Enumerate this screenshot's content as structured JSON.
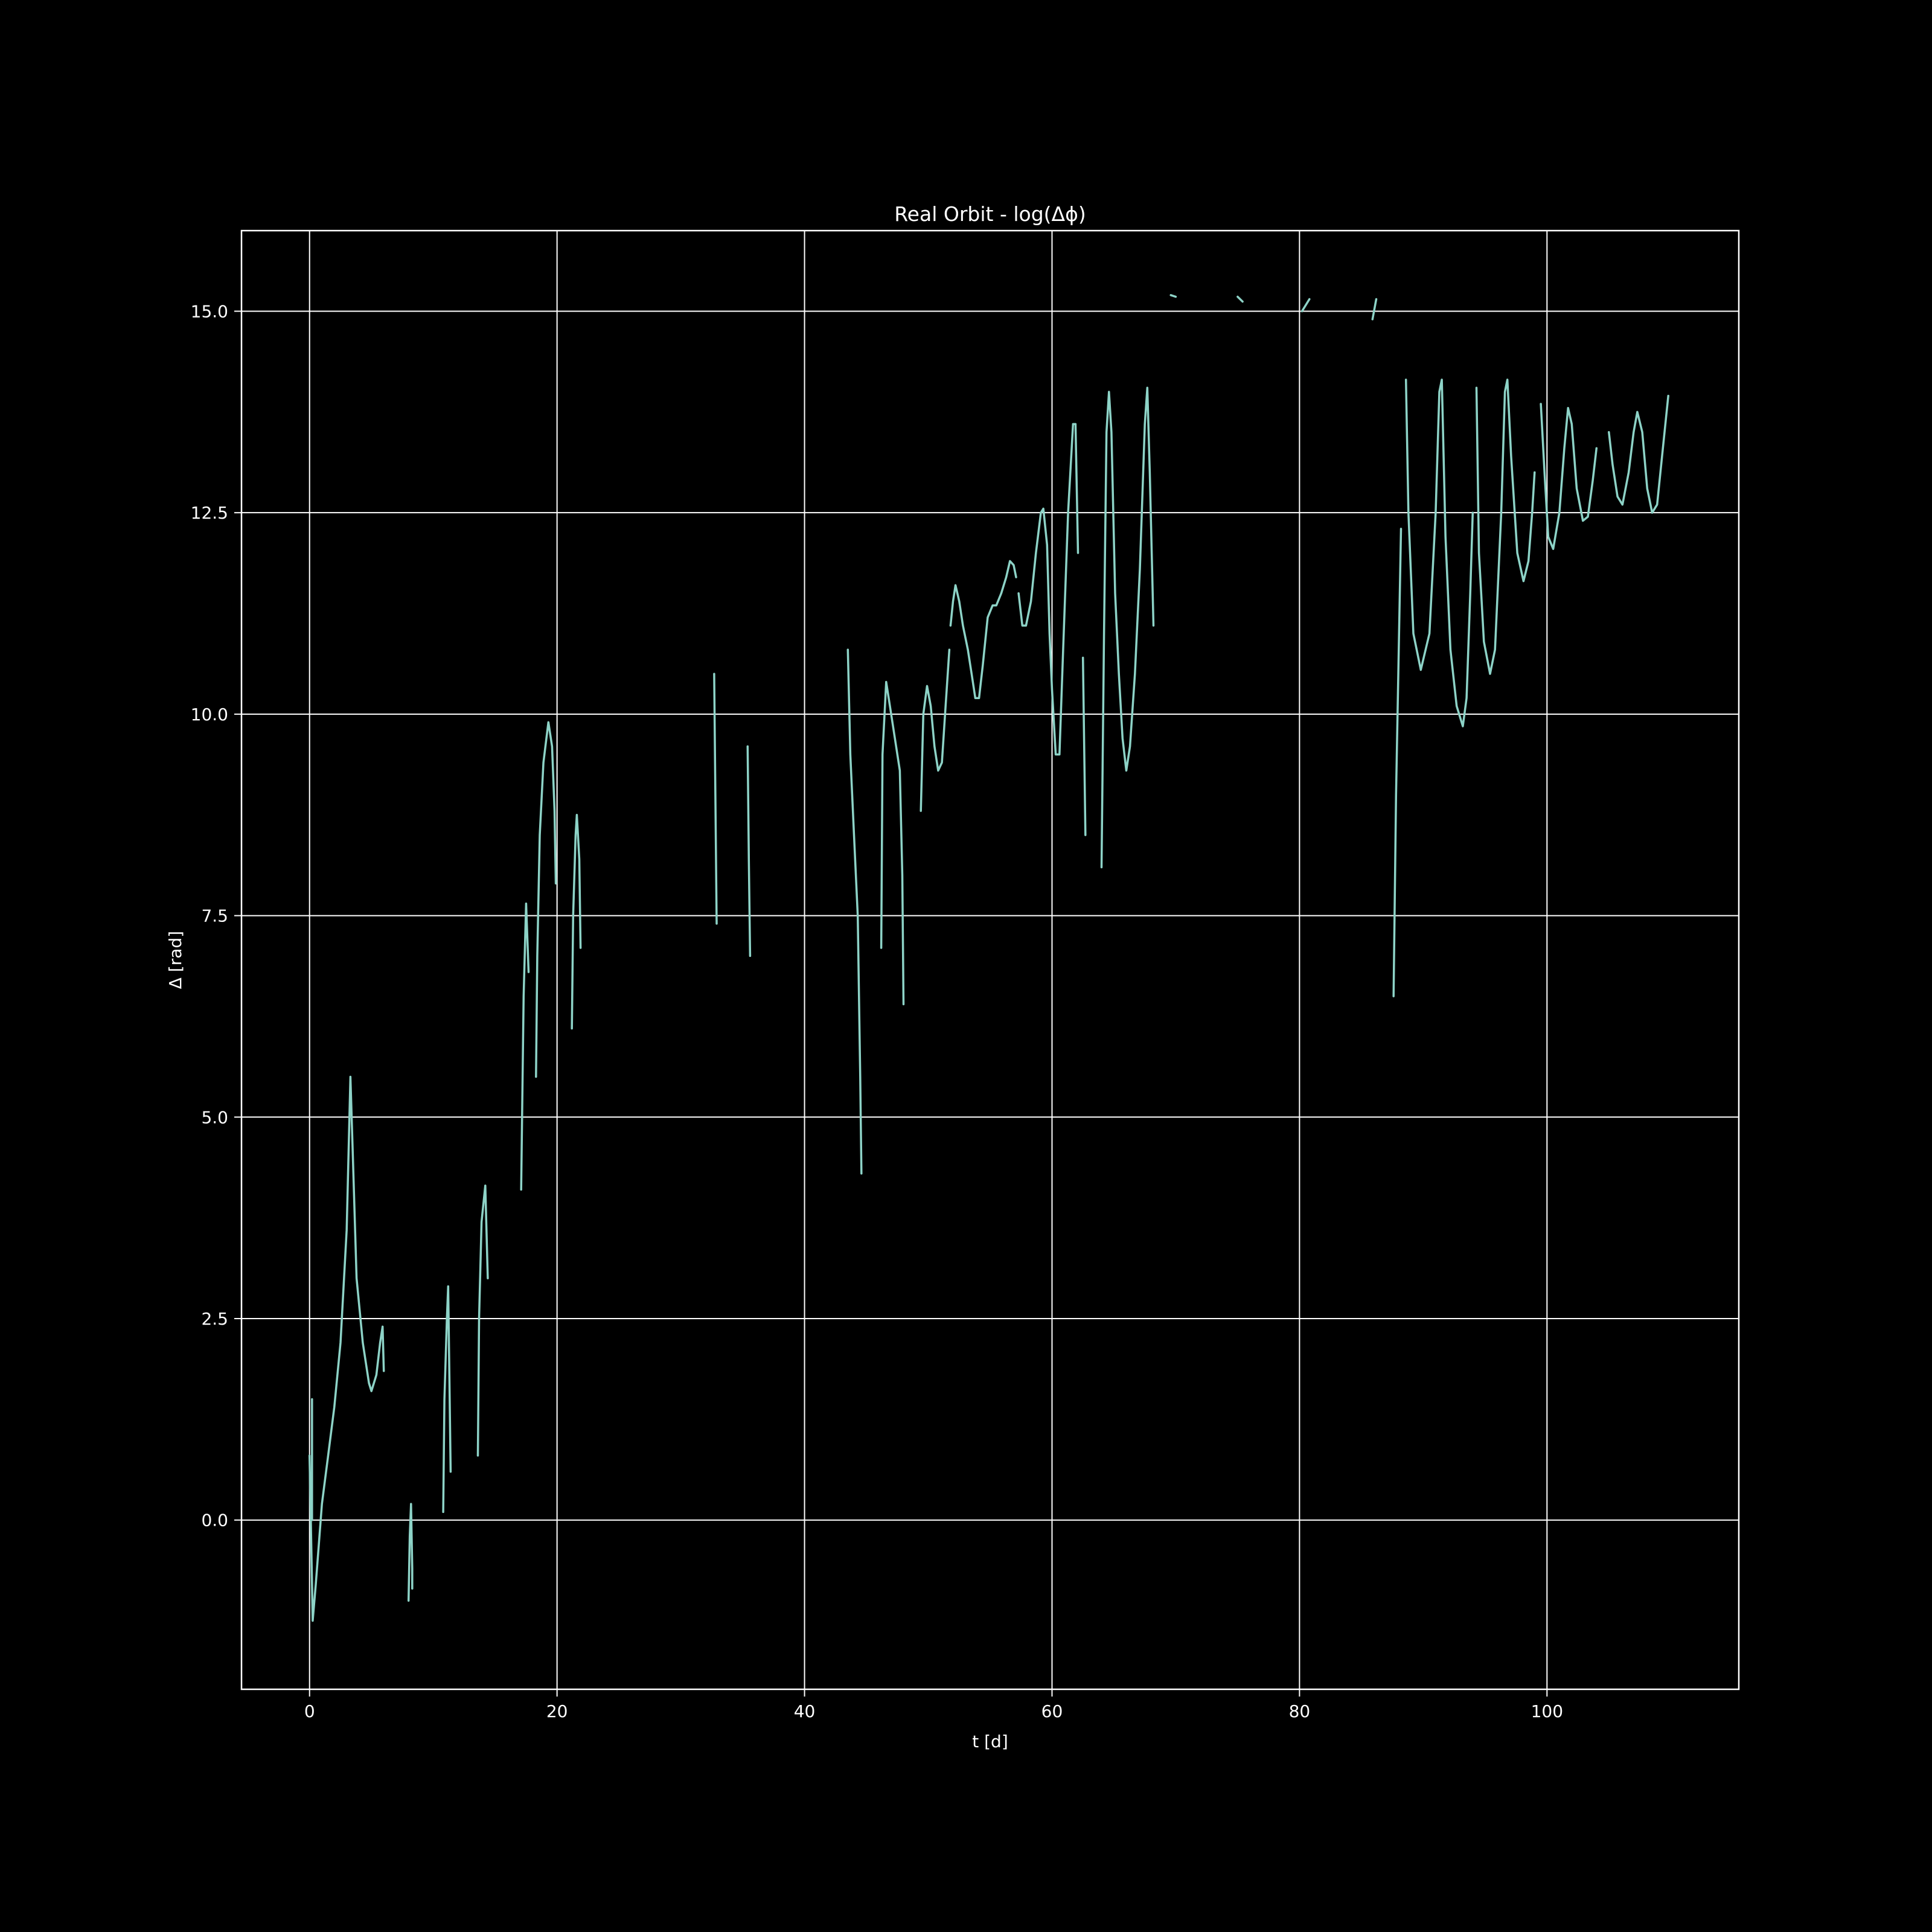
{
  "chart_data": {
    "type": "line",
    "title": "Real Orbit - log(Δϕ)",
    "xlabel": "t [d]",
    "ylabel": "Δ [rad]",
    "xlim": [
      -5.5,
      115.5
    ],
    "ylim": [
      -2.1,
      16.0
    ],
    "grid": true,
    "background": "#000000",
    "line_color": "#8dd3c7",
    "grid_color": "#ffffff",
    "x_ticks": [
      {
        "value": 0,
        "label": "0"
      },
      {
        "value": 20,
        "label": "20"
      },
      {
        "value": 40,
        "label": "40"
      },
      {
        "value": 60,
        "label": "60"
      },
      {
        "value": 80,
        "label": "80"
      },
      {
        "value": 100,
        "label": "100"
      }
    ],
    "y_ticks": [
      {
        "value": 0.0,
        "label": "0.0"
      },
      {
        "value": 2.5,
        "label": "2.5"
      },
      {
        "value": 5.0,
        "label": "5.0"
      },
      {
        "value": 7.5,
        "label": "7.5"
      },
      {
        "value": 10.0,
        "label": "10.0"
      },
      {
        "value": 12.5,
        "label": "12.5"
      },
      {
        "value": 15.0,
        "label": "15.0"
      }
    ],
    "segments": [
      [
        [
          0.0,
          0.8
        ],
        [
          0.1,
          0.0
        ],
        [
          0.25,
          -1.25
        ],
        [
          0.5,
          -0.8
        ],
        [
          1.0,
          0.2
        ],
        [
          1.5,
          0.8
        ],
        [
          2.0,
          1.4
        ],
        [
          2.5,
          2.2
        ],
        [
          3.0,
          3.6
        ],
        [
          3.3,
          5.5
        ],
        [
          3.5,
          4.5
        ],
        [
          3.8,
          3.0
        ],
        [
          4.3,
          2.2
        ],
        [
          4.8,
          1.7
        ],
        [
          5.0,
          1.6
        ],
        [
          5.4,
          1.8
        ],
        [
          5.7,
          2.2
        ],
        [
          5.9,
          2.4
        ],
        [
          6.0,
          1.85
        ]
      ],
      [
        [
          0.2,
          1.5
        ],
        [
          0.2,
          0.0
        ]
      ],
      [
        [
          8.0,
          -1.0
        ],
        [
          8.1,
          -0.2
        ],
        [
          8.2,
          0.2
        ],
        [
          8.3,
          -0.6
        ],
        [
          8.3,
          -0.85
        ]
      ],
      [
        [
          10.8,
          0.1
        ],
        [
          10.9,
          1.5
        ],
        [
          11.1,
          2.5
        ],
        [
          11.2,
          2.9
        ],
        [
          11.3,
          1.8
        ],
        [
          11.4,
          0.6
        ]
      ],
      [
        [
          13.6,
          0.8
        ],
        [
          13.7,
          2.5
        ],
        [
          13.9,
          3.7
        ],
        [
          14.2,
          4.15
        ],
        [
          14.4,
          3.0
        ]
      ],
      [
        [
          17.1,
          4.1
        ],
        [
          17.3,
          6.5
        ],
        [
          17.5,
          7.65
        ],
        [
          17.7,
          6.8
        ]
      ],
      [
        [
          18.3,
          5.5
        ],
        [
          18.4,
          7.0
        ],
        [
          18.6,
          8.5
        ],
        [
          18.9,
          9.4
        ],
        [
          19.3,
          9.9
        ],
        [
          19.6,
          9.6
        ],
        [
          19.8,
          8.8
        ],
        [
          19.9,
          7.9
        ]
      ],
      [
        [
          21.2,
          6.1
        ],
        [
          21.3,
          7.5
        ],
        [
          21.5,
          8.5
        ],
        [
          21.6,
          8.75
        ],
        [
          21.8,
          8.2
        ],
        [
          21.9,
          7.1
        ]
      ],
      [
        [
          32.7,
          10.5
        ],
        [
          32.9,
          7.4
        ]
      ],
      [
        [
          35.4,
          9.6
        ],
        [
          35.5,
          8.2
        ],
        [
          35.6,
          7.0
        ]
      ],
      [
        [
          43.5,
          10.8
        ],
        [
          43.7,
          9.5
        ],
        [
          44.0,
          8.5
        ],
        [
          44.3,
          7.5
        ],
        [
          44.5,
          5.5
        ],
        [
          44.6,
          4.3
        ]
      ],
      [
        [
          46.2,
          7.1
        ],
        [
          46.3,
          9.5
        ],
        [
          46.6,
          10.4
        ],
        [
          46.9,
          10.1
        ],
        [
          47.3,
          9.7
        ],
        [
          47.7,
          9.3
        ],
        [
          47.9,
          8.0
        ],
        [
          48.0,
          6.4
        ]
      ],
      [
        [
          49.4,
          8.8
        ],
        [
          49.6,
          10.0
        ],
        [
          49.9,
          10.35
        ],
        [
          50.2,
          10.1
        ],
        [
          50.5,
          9.6
        ],
        [
          50.8,
          9.3
        ],
        [
          51.1,
          9.4
        ],
        [
          51.4,
          10.1
        ],
        [
          51.7,
          10.8
        ]
      ],
      [
        [
          51.8,
          11.1
        ],
        [
          52.0,
          11.4
        ],
        [
          52.2,
          11.6
        ],
        [
          52.5,
          11.4
        ],
        [
          52.8,
          11.1
        ],
        [
          53.2,
          10.8
        ],
        [
          53.5,
          10.5
        ],
        [
          53.8,
          10.2
        ],
        [
          54.1,
          10.2
        ],
        [
          54.4,
          10.6
        ],
        [
          54.8,
          11.2
        ],
        [
          55.2,
          11.35
        ],
        [
          55.5,
          11.35
        ],
        [
          55.9,
          11.5
        ],
        [
          56.3,
          11.7
        ],
        [
          56.6,
          11.9
        ],
        [
          56.9,
          11.85
        ],
        [
          57.1,
          11.7
        ]
      ],
      [
        [
          57.3,
          11.5
        ],
        [
          57.6,
          11.1
        ],
        [
          57.9,
          11.1
        ],
        [
          58.3,
          11.4
        ],
        [
          58.7,
          12.0
        ],
        [
          59.1,
          12.5
        ],
        [
          59.3,
          12.55
        ],
        [
          59.6,
          12.1
        ],
        [
          59.8,
          11.0
        ],
        [
          60.0,
          10.3
        ],
        [
          60.3,
          9.5
        ],
        [
          60.6,
          9.5
        ],
        [
          60.9,
          10.8
        ],
        [
          61.3,
          12.5
        ],
        [
          61.7,
          13.6
        ],
        [
          61.9,
          13.6
        ],
        [
          62.1,
          12.0
        ]
      ],
      [
        [
          62.5,
          10.7
        ],
        [
          62.7,
          8.5
        ]
      ],
      [
        [
          64.0,
          8.1
        ],
        [
          64.2,
          11.0
        ],
        [
          64.4,
          13.5
        ],
        [
          64.6,
          14.0
        ],
        [
          64.8,
          13.5
        ],
        [
          65.1,
          11.5
        ],
        [
          65.4,
          10.5
        ],
        [
          65.7,
          9.7
        ],
        [
          66.0,
          9.3
        ],
        [
          66.3,
          9.6
        ],
        [
          66.7,
          10.5
        ],
        [
          67.1,
          11.8
        ],
        [
          67.5,
          13.6
        ],
        [
          67.7,
          14.05
        ],
        [
          67.9,
          13.0
        ],
        [
          68.2,
          11.1
        ]
      ],
      [
        [
          69.6,
          15.2
        ],
        [
          70.0,
          15.18
        ]
      ],
      [
        [
          75.0,
          15.18
        ],
        [
          75.4,
          15.12
        ]
      ],
      [
        [
          80.2,
          15.0
        ],
        [
          80.8,
          15.15
        ]
      ],
      [
        [
          85.9,
          14.9
        ],
        [
          86.2,
          15.15
        ]
      ],
      [
        [
          87.6,
          6.5
        ],
        [
          87.8,
          9.0
        ],
        [
          88.2,
          12.3
        ]
      ],
      [
        [
          88.6,
          14.15
        ],
        [
          88.8,
          12.5
        ],
        [
          89.2,
          11.0
        ],
        [
          89.8,
          10.55
        ],
        [
          90.5,
          11.0
        ],
        [
          91.0,
          12.5
        ],
        [
          91.3,
          14.0
        ],
        [
          91.5,
          14.15
        ],
        [
          91.8,
          12.2
        ],
        [
          92.2,
          10.8
        ],
        [
          92.7,
          10.1
        ],
        [
          93.2,
          9.85
        ],
        [
          93.5,
          10.2
        ],
        [
          93.8,
          11.5
        ],
        [
          94.0,
          12.5
        ]
      ],
      [
        [
          94.3,
          14.05
        ],
        [
          94.5,
          12.0
        ],
        [
          94.9,
          10.9
        ],
        [
          95.4,
          10.5
        ],
        [
          95.8,
          10.8
        ],
        [
          96.3,
          12.5
        ],
        [
          96.6,
          14.0
        ],
        [
          96.8,
          14.15
        ],
        [
          97.1,
          13.2
        ],
        [
          97.6,
          12.0
        ],
        [
          98.1,
          11.65
        ],
        [
          98.5,
          11.9
        ],
        [
          98.8,
          12.5
        ],
        [
          99.0,
          13.0
        ]
      ],
      [
        [
          99.5,
          13.85
        ],
        [
          99.8,
          13.0
        ],
        [
          100.1,
          12.2
        ],
        [
          100.5,
          12.05
        ],
        [
          101.0,
          12.5
        ],
        [
          101.4,
          13.3
        ],
        [
          101.7,
          13.8
        ],
        [
          102.0,
          13.6
        ],
        [
          102.4,
          12.8
        ],
        [
          102.9,
          12.4
        ],
        [
          103.3,
          12.45
        ],
        [
          103.7,
          12.9
        ],
        [
          104.0,
          13.3
        ]
      ],
      [
        [
          105.0,
          13.5
        ],
        [
          105.3,
          13.1
        ],
        [
          105.7,
          12.7
        ],
        [
          106.1,
          12.6
        ],
        [
          106.6,
          13.0
        ],
        [
          107.0,
          13.5
        ],
        [
          107.3,
          13.75
        ],
        [
          107.7,
          13.5
        ],
        [
          108.1,
          12.8
        ],
        [
          108.5,
          12.5
        ],
        [
          108.9,
          12.6
        ],
        [
          109.3,
          13.2
        ],
        [
          109.8,
          13.95
        ]
      ]
    ]
  }
}
